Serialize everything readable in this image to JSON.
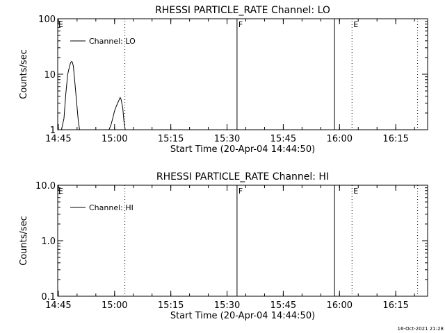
{
  "footer": {
    "timestamp": "16-Oct-2021 21:28"
  },
  "chart_data": [
    {
      "type": "line",
      "title": "RHESSI PARTICLE_RATE Channel: LO",
      "xlabel": "Start Time (20-Apr-04 14:44:50)",
      "ylabel": "Counts/sec",
      "yscale": "log",
      "xlim": [
        "14:44:50",
        "16:23:30"
      ],
      "ylim": [
        1,
        100
      ],
      "x_ticks": [
        "14:45",
        "15:00",
        "15:15",
        "15:30",
        "15:45",
        "16:00",
        "16:15"
      ],
      "y_ticks": [
        "1",
        "10",
        "100"
      ],
      "legend": {
        "position": "top-left",
        "entries": [
          "Channel: LO"
        ]
      },
      "series": [
        {
          "name": "Channel: LO",
          "x": [
            "14:45:50",
            "14:46:30",
            "14:47:00",
            "14:47:30",
            "14:48:00",
            "14:48:15",
            "14:48:30",
            "14:48:45",
            "14:49:00",
            "14:49:30",
            "14:50:00",
            "14:50:20",
            "14:50:40",
            "14:58:30",
            "14:59:00",
            "14:59:30",
            "15:00:00",
            "15:00:30",
            "15:01:00",
            "15:01:15",
            "15:01:30",
            "15:01:45",
            "15:02:10",
            "15:02:30",
            "15:02:50"
          ],
          "values": [
            1.0,
            1.6,
            4.5,
            10,
            14,
            16,
            17,
            16.5,
            14,
            6,
            2.5,
            1.4,
            1.0,
            1.0,
            1.2,
            1.6,
            2.2,
            2.7,
            3.2,
            3.5,
            3.8,
            3.5,
            2.5,
            1.4,
            1.0
          ]
        }
      ],
      "markers": [
        {
          "time": "15:02:45",
          "style": "dotted",
          "label": ""
        },
        {
          "time": "15:32:40",
          "style": "solid",
          "label": "F"
        },
        {
          "time": "15:58:40",
          "style": "solid",
          "label": ""
        },
        {
          "time": "16:03:20",
          "style": "dotted",
          "label": "E"
        },
        {
          "time": "16:20:50",
          "style": "dotted",
          "label": ""
        }
      ],
      "corner_label": "E"
    },
    {
      "type": "line",
      "title": "RHESSI PARTICLE_RATE Channel: HI",
      "xlabel": "Start Time (20-Apr-04 14:44:50)",
      "ylabel": "Counts/sec",
      "yscale": "log",
      "xlim": [
        "14:44:50",
        "16:23:30"
      ],
      "ylim": [
        0.1,
        10
      ],
      "x_ticks": [
        "14:45",
        "15:00",
        "15:15",
        "15:30",
        "15:45",
        "16:00",
        "16:15"
      ],
      "y_ticks": [
        "0.1",
        "1.0",
        "10.0"
      ],
      "legend": {
        "position": "top-left",
        "entries": [
          "Channel: HI"
        ]
      },
      "series": [
        {
          "name": "Channel: HI",
          "x": [],
          "values": []
        }
      ],
      "markers": [
        {
          "time": "15:02:45",
          "style": "dotted",
          "label": ""
        },
        {
          "time": "15:32:40",
          "style": "solid",
          "label": "F"
        },
        {
          "time": "15:58:40",
          "style": "solid",
          "label": ""
        },
        {
          "time": "16:03:20",
          "style": "dotted",
          "label": "E"
        },
        {
          "time": "16:20:50",
          "style": "dotted",
          "label": ""
        }
      ],
      "corner_label": "E"
    }
  ]
}
